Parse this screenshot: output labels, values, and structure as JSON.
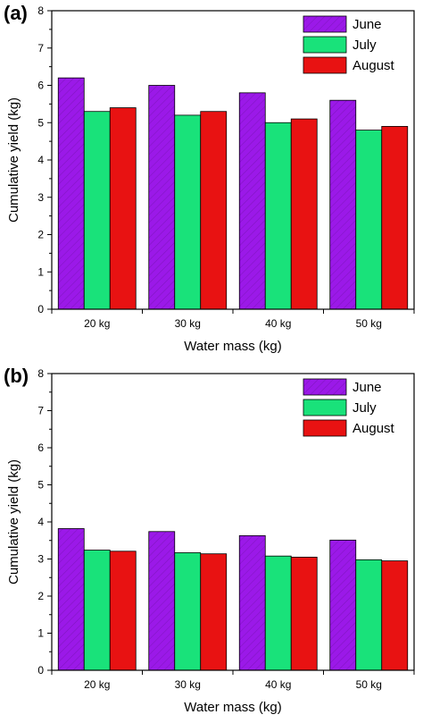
{
  "colors": {
    "June": "#9B19E8",
    "July": "#19E27A",
    "August": "#E81212"
  },
  "chart_data": [
    {
      "panel": "(a)",
      "type": "bar",
      "categories": [
        "20 kg",
        "30 kg",
        "40 kg",
        "50 kg"
      ],
      "series": [
        {
          "name": "June",
          "values": [
            6.2,
            6.0,
            5.8,
            5.6
          ]
        },
        {
          "name": "July",
          "values": [
            5.3,
            5.2,
            5.0,
            4.8
          ]
        },
        {
          "name": "August",
          "values": [
            5.4,
            5.3,
            5.1,
            4.9
          ]
        }
      ],
      "xlabel": "Water mass (kg)",
      "ylabel": "Cumulative yield (kg)",
      "ylim": [
        0,
        8
      ],
      "yticks": [
        0,
        1,
        2,
        3,
        4,
        5,
        6,
        7,
        8
      ],
      "legend": "top-right",
      "grid": false
    },
    {
      "panel": "(b)",
      "type": "bar",
      "categories": [
        "20 kg",
        "30 kg",
        "40 kg",
        "50 kg"
      ],
      "series": [
        {
          "name": "June",
          "values": [
            3.82,
            3.74,
            3.63,
            3.51
          ]
        },
        {
          "name": "July",
          "values": [
            3.24,
            3.17,
            3.08,
            2.98
          ]
        },
        {
          "name": "August",
          "values": [
            3.21,
            3.14,
            3.05,
            2.95
          ]
        }
      ],
      "xlabel": "Water mass (kg)",
      "ylabel": "Cumulative yield (kg)",
      "ylim": [
        0,
        8
      ],
      "yticks": [
        0,
        1,
        2,
        3,
        4,
        5,
        6,
        7,
        8
      ],
      "legend": "top-right",
      "grid": false
    }
  ]
}
